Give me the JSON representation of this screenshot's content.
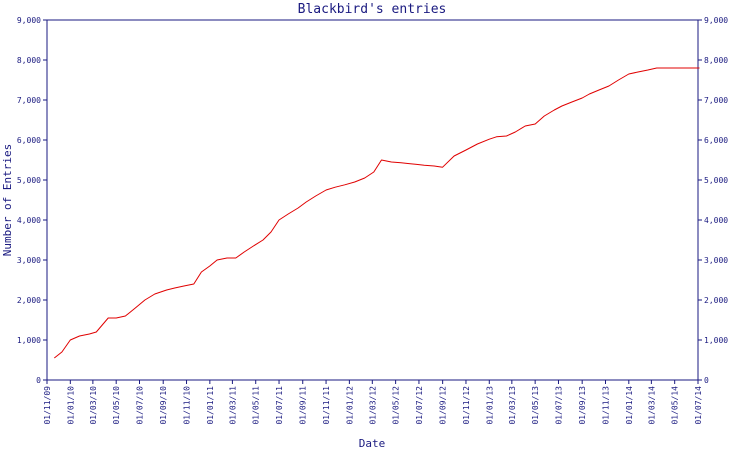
{
  "chart_data": {
    "type": "line",
    "title": "Blackbird's entries",
    "xlabel": "Date",
    "ylabel": "Number of Entries",
    "ylim": [
      0,
      9000
    ],
    "y_ticks": [
      "0",
      "1,000",
      "2,000",
      "3,000",
      "4,000",
      "5,000",
      "6,000",
      "7,000",
      "8,000",
      "9,000"
    ],
    "x_ticks": [
      "01/11/09",
      "01/01/10",
      "01/03/10",
      "01/05/10",
      "01/07/10",
      "01/09/10",
      "01/11/10",
      "01/01/11",
      "01/03/11",
      "01/05/11",
      "01/07/11",
      "01/09/11",
      "01/11/11",
      "01/01/12",
      "01/03/12",
      "01/05/12",
      "01/07/12",
      "01/09/12",
      "01/11/12",
      "01/01/13",
      "01/03/13",
      "01/05/13",
      "01/07/13",
      "01/09/13",
      "01/11/13",
      "01/01/14",
      "01/03/14",
      "01/05/14",
      "01/07/14"
    ],
    "grid": false,
    "line_color": "#e00000",
    "axis_color": "#1a1a80",
    "series": [
      {
        "x": [
          "2009-11-20",
          "2009-12-10",
          "2010-01-01",
          "2010-01-25",
          "2010-02-20",
          "2010-03-10",
          "2010-04-10",
          "2010-05-01",
          "2010-05-25",
          "2010-06-20",
          "2010-07-15",
          "2010-08-10",
          "2010-09-10",
          "2010-10-01",
          "2010-10-25",
          "2010-11-20",
          "2010-12-10",
          "2011-01-01",
          "2011-01-20",
          "2011-02-15",
          "2011-03-10",
          "2011-04-01",
          "2011-04-25",
          "2011-05-20",
          "2011-06-10",
          "2011-07-01",
          "2011-07-25",
          "2011-08-20",
          "2011-09-10",
          "2011-10-05",
          "2011-11-01",
          "2011-11-25",
          "2011-12-20",
          "2012-01-15",
          "2012-02-10",
          "2012-03-05",
          "2012-03-25",
          "2012-04-20",
          "2012-05-15",
          "2012-06-05",
          "2012-06-25",
          "2012-07-15",
          "2012-08-10",
          "2012-09-01",
          "2012-10-01",
          "2012-11-01",
          "2012-12-01",
          "2013-01-01",
          "2013-01-20",
          "2013-02-15",
          "2013-03-10",
          "2013-04-05",
          "2013-05-01",
          "2013-05-25",
          "2013-06-20",
          "2013-07-10",
          "2013-08-05",
          "2013-09-01",
          "2013-09-20",
          "2013-10-15",
          "2013-11-10",
          "2013-12-05",
          "2014-01-01",
          "2014-01-25",
          "2014-02-20",
          "2014-03-15",
          "2014-04-10",
          "2014-05-05",
          "2014-05-25",
          "2014-06-15",
          "2014-07-05"
        ],
        "values": [
          550,
          700,
          1000,
          1100,
          1150,
          1200,
          1550,
          1550,
          1600,
          1800,
          2000,
          2150,
          2250,
          2300,
          2350,
          2400,
          2700,
          2850,
          3000,
          3050,
          3050,
          3200,
          3350,
          3500,
          3700,
          4000,
          4150,
          4300,
          4450,
          4600,
          4750,
          4820,
          4880,
          4950,
          5050,
          5200,
          5500,
          5450,
          5430,
          5410,
          5390,
          5370,
          5350,
          5320,
          5600,
          5750,
          5900,
          6020,
          6080,
          6100,
          6200,
          6350,
          6400,
          6600,
          6750,
          6850,
          6950,
          7050,
          7150,
          7250,
          7350,
          7500,
          7650,
          7700,
          7750,
          7800,
          7800,
          7800,
          7800,
          7800,
          7800
        ]
      }
    ]
  }
}
